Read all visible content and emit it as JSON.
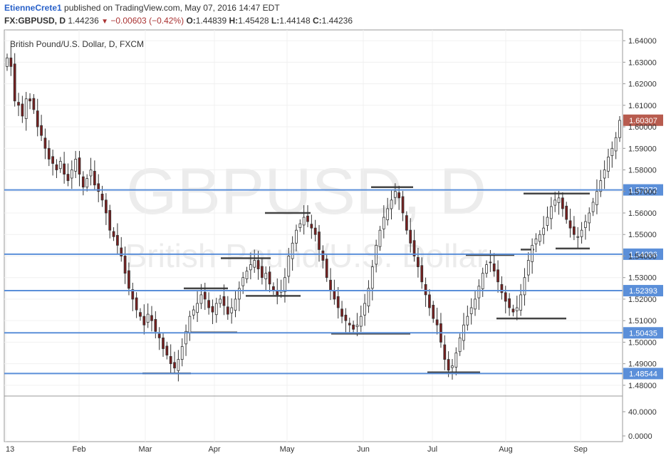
{
  "header": {
    "author": "EtienneCrete1",
    "published_text": "published on TradingView.com, May 07, 2016 14:47 EDT",
    "symbol": "FX:GBPUSD, D",
    "last": "1.44236",
    "change": "−0.00603 (−0.42%)",
    "o_label": "O:",
    "o_value": "1.44839",
    "h_label": "H:",
    "h_value": "1.45428",
    "l_label": "L:",
    "l_value": "1.44148",
    "c_label": "C:",
    "c_value": "1.44236"
  },
  "chart_data": {
    "type": "candlestick",
    "title": "British Pound/U.S. Dollar, D, FXCM",
    "watermark_line1": "GBPUSD, D",
    "watermark_line2": "British Pound/U.S. Dollar",
    "price_axis": {
      "ylim": [
        1.475,
        1.645
      ],
      "ticks": [
        "1.64000",
        "1.63000",
        "1.62000",
        "1.61000",
        "1.60000",
        "1.59000",
        "1.58000",
        "1.57000",
        "1.56000",
        "1.55000",
        "1.54000",
        "1.53000",
        "1.52000",
        "1.51000",
        "1.50000",
        "1.49000",
        "1.48000"
      ]
    },
    "time_axis": [
      "13",
      "Feb",
      "Mar",
      "Apr",
      "May",
      "Jun",
      "Jul",
      "Aug",
      "Sep"
    ],
    "volume_axis": {
      "ticks": [
        "40.0000",
        "0.0000"
      ]
    },
    "last_price_label": "1.60307",
    "horizontal_levels": [
      "1.57072",
      "1.54086",
      "1.52393",
      "1.50435",
      "1.48544"
    ],
    "colors": {
      "level_line": "#5b8fd9",
      "level_label": "#5b8fd9",
      "last_label": "#b85c4f",
      "candle_up": "#ffffff",
      "candle_down": "#7a1f1f",
      "support_segment": "#444444"
    },
    "support_segments": [
      {
        "x_from": "Mar",
        "value": 1.4855
      },
      {
        "x_from": "Apr",
        "value": 1.5045
      },
      {
        "x_from": "Apr",
        "value": 1.525
      },
      {
        "x_from": "Apr",
        "value": 1.539
      },
      {
        "x_from": "Apr",
        "value": 1.5215
      },
      {
        "x_from": "May",
        "value": 1.56
      },
      {
        "x_from": "May",
        "value": 1.504
      },
      {
        "x_from": "Jun",
        "value": 1.572
      },
      {
        "x_from": "Jul",
        "value": 1.5405
      },
      {
        "x_from": "Jul",
        "value": 1.486
      },
      {
        "x_from": "Aug",
        "value": 1.543
      },
      {
        "x_from": "Aug",
        "value": 1.569
      },
      {
        "x_from": "Aug",
        "value": 1.511
      },
      {
        "x_from": "Sep",
        "value": 1.5435
      }
    ],
    "ohlc_close_path": [
      1.632,
      1.628,
      1.612,
      1.61,
      1.605,
      1.613,
      1.612,
      1.608,
      1.6,
      1.596,
      1.59,
      1.585,
      1.583,
      1.58,
      1.584,
      1.578,
      1.575,
      1.58,
      1.585,
      1.578,
      1.572,
      1.576,
      1.58,
      1.573,
      1.57,
      1.566,
      1.56,
      1.552,
      1.549,
      1.545,
      1.54,
      1.532,
      1.525,
      1.52,
      1.515,
      1.512,
      1.508,
      1.513,
      1.51,
      1.505,
      1.502,
      1.497,
      1.494,
      1.49,
      1.488,
      1.492,
      1.498,
      1.505,
      1.512,
      1.515,
      1.518,
      1.522,
      1.52,
      1.516,
      1.514,
      1.518,
      1.52,
      1.517,
      1.513,
      1.516,
      1.52,
      1.525,
      1.53,
      1.533,
      1.536,
      1.538,
      1.534,
      1.53,
      1.532,
      1.527,
      1.524,
      1.522,
      1.524,
      1.53,
      1.54,
      1.546,
      1.552,
      1.555,
      1.558,
      1.556,
      1.553,
      1.55,
      1.543,
      1.538,
      1.53,
      1.524,
      1.52,
      1.516,
      1.512,
      1.51,
      1.508,
      1.506,
      1.508,
      1.512,
      1.518,
      1.525,
      1.535,
      1.545,
      1.552,
      1.558,
      1.562,
      1.566,
      1.57,
      1.567,
      1.56,
      1.552,
      1.546,
      1.54,
      1.535,
      1.528,
      1.522,
      1.516,
      1.511,
      1.508,
      1.5,
      1.492,
      1.487,
      1.489,
      1.495,
      1.502,
      1.508,
      1.512,
      1.516,
      1.52,
      1.526,
      1.532,
      1.536,
      1.537,
      1.533,
      1.528,
      1.523,
      1.519,
      1.516,
      1.514,
      1.516,
      1.522,
      1.53,
      1.538,
      1.545,
      1.548,
      1.55,
      1.553,
      1.558,
      1.563,
      1.566,
      1.567,
      1.562,
      1.557,
      1.553,
      1.55,
      1.549,
      1.552,
      1.556,
      1.56,
      1.565,
      1.57,
      1.575,
      1.58,
      1.586,
      1.59,
      1.595,
      1.603
    ]
  }
}
